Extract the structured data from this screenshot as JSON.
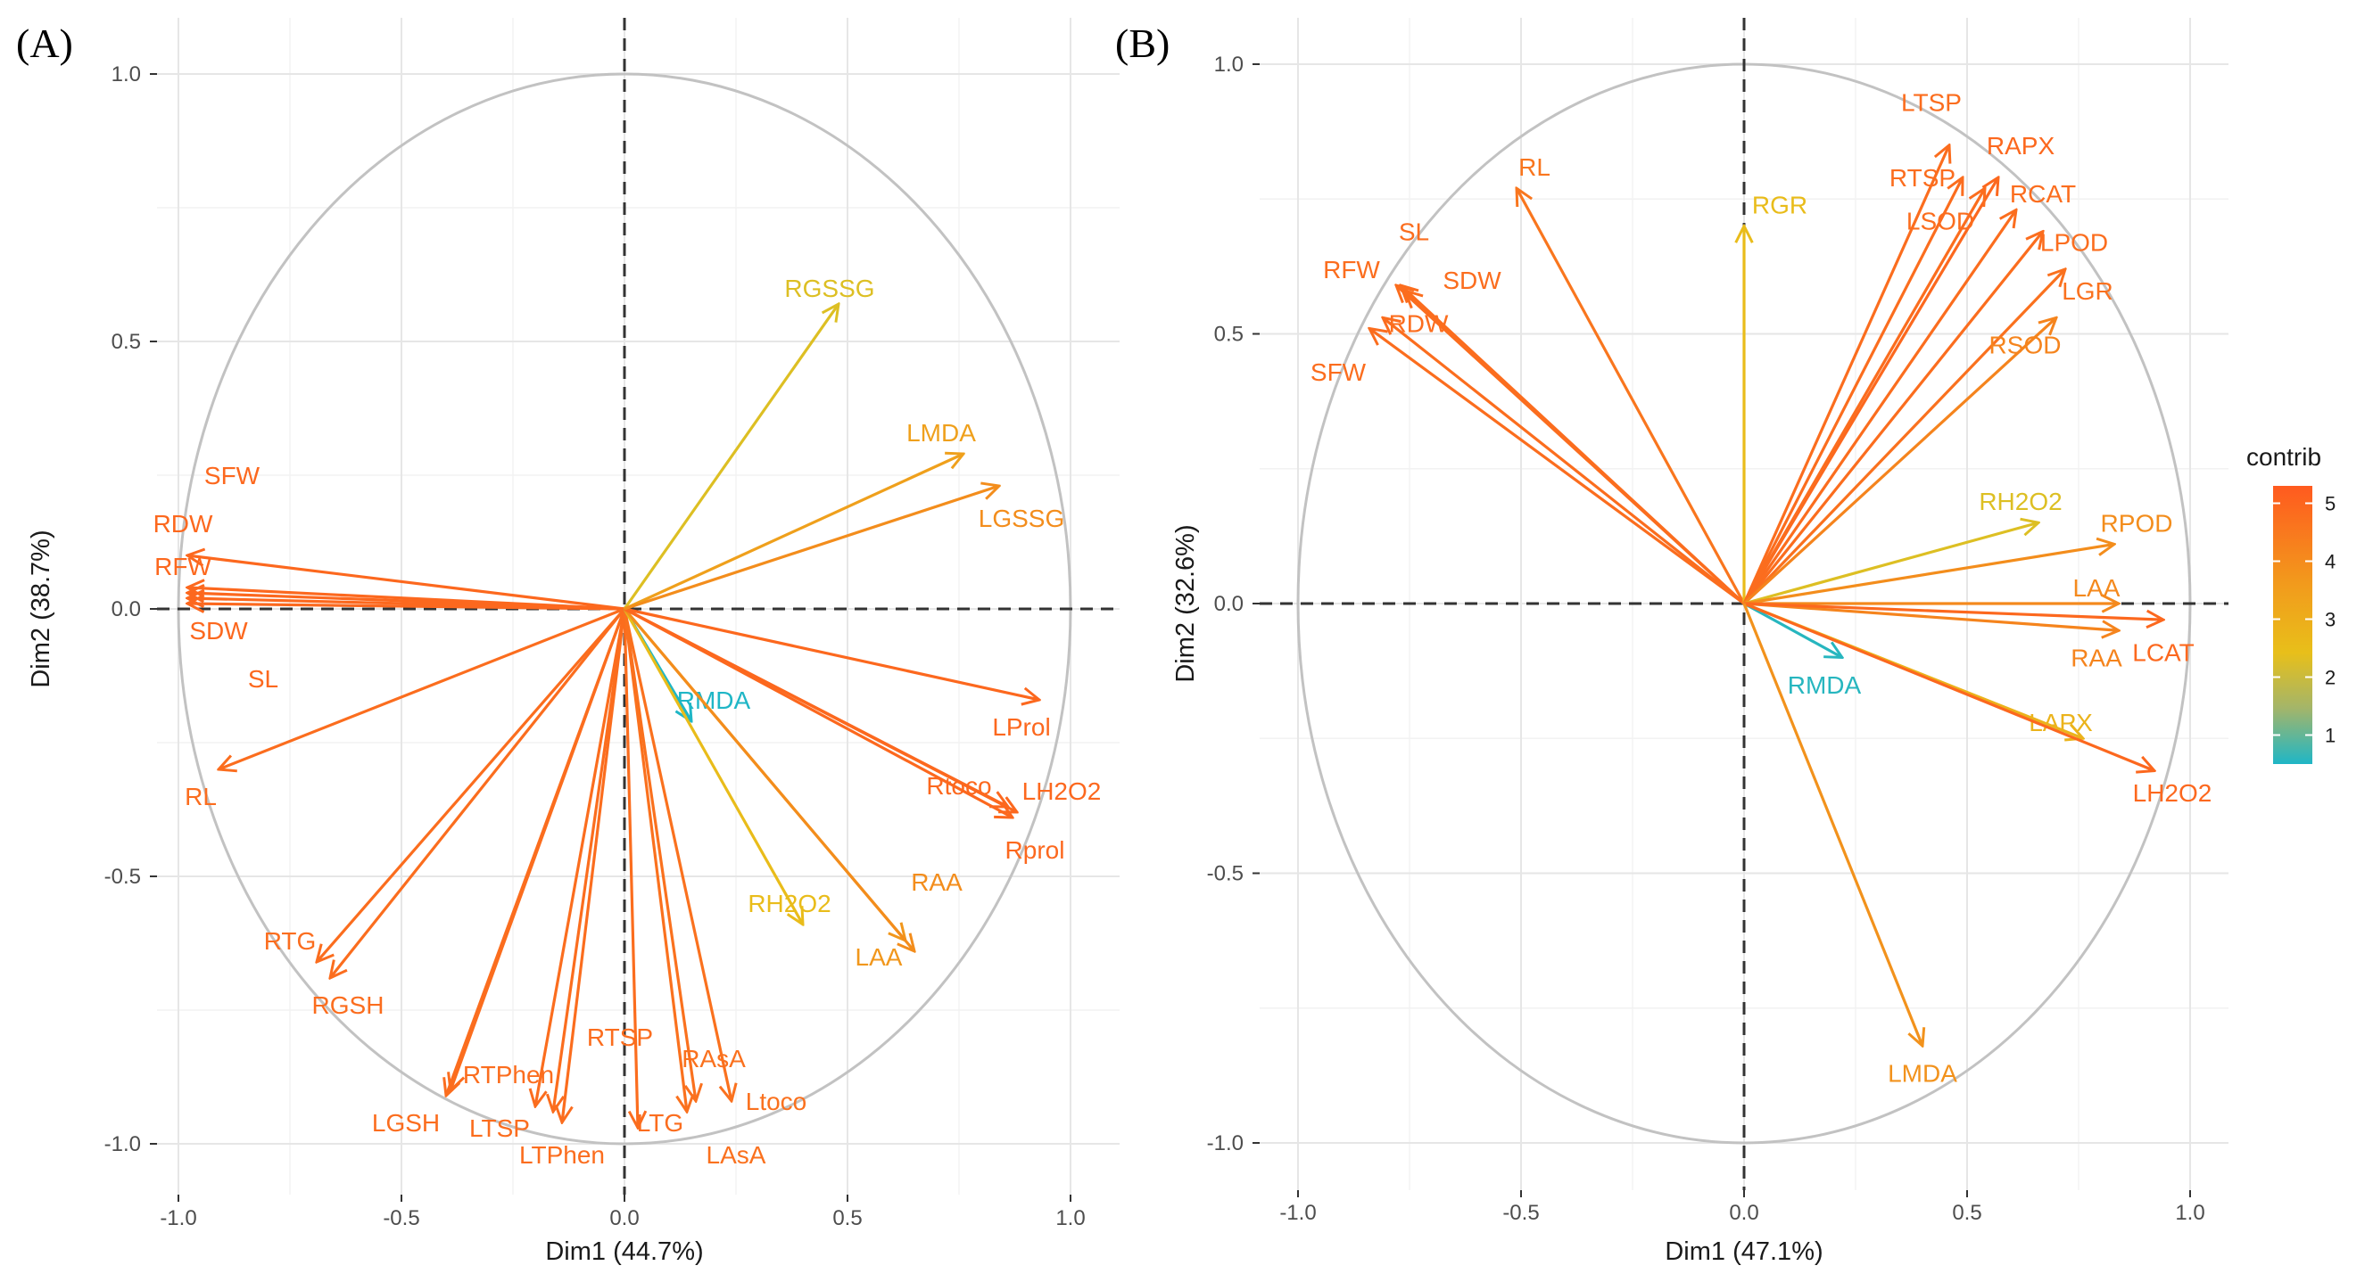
{
  "figure": {
    "color_scale": {
      "low": "#1fb6c6",
      "mid": "#e8bf1a",
      "high": "#ff5a1f"
    },
    "legend": {
      "title": "contrib",
      "ticks": [
        "5",
        "4",
        "3",
        "2",
        "1"
      ],
      "tick_values": [
        5,
        4,
        3,
        2,
        1
      ],
      "range": [
        0.5,
        5.3
      ]
    }
  },
  "chart_data": [
    {
      "type": "pca-variable-correlation-circle",
      "panel_label": "(A)",
      "xlabel": "Dim1 (44.7%)",
      "ylabel": "Dim2 (38.7%)",
      "xlim": [
        -1.0,
        1.0
      ],
      "ylim": [
        -1.0,
        1.0
      ],
      "x_ticks": [
        -1.0,
        -0.5,
        0.0,
        0.5,
        1.0
      ],
      "x_tick_labels": [
        "-1.0",
        "-0.5",
        "0.0",
        "0.5",
        "1.0"
      ],
      "y_ticks": [
        -1.0,
        -0.5,
        0.0,
        0.5,
        1.0
      ],
      "y_tick_labels": [
        "-1.0",
        "-0.5",
        "0.0",
        "0.5",
        "1.0"
      ],
      "variables": [
        {
          "name": "SFW",
          "x": -0.98,
          "y": 0.03,
          "contrib": 5.0,
          "label_x": -0.88,
          "label_y": 0.25
        },
        {
          "name": "RDW",
          "x": -0.98,
          "y": 0.1,
          "contrib": 5.0,
          "label_x": -0.99,
          "label_y": 0.16
        },
        {
          "name": "RFW",
          "x": -0.98,
          "y": 0.04,
          "contrib": 5.0,
          "label_x": -0.99,
          "label_y": 0.08
        },
        {
          "name": "SDW",
          "x": -0.98,
          "y": 0.01,
          "contrib": 5.0,
          "label_x": -0.91,
          "label_y": -0.04
        },
        {
          "name": "SL",
          "x": -0.98,
          "y": 0.02,
          "contrib": 5.0,
          "label_x": -0.81,
          "label_y": -0.13
        },
        {
          "name": "RL",
          "x": -0.91,
          "y": -0.3,
          "contrib": 4.9,
          "label_x": -0.95,
          "label_y": -0.35
        },
        {
          "name": "RTG",
          "x": -0.69,
          "y": -0.66,
          "contrib": 4.9,
          "label_x": -0.75,
          "label_y": -0.62
        },
        {
          "name": "RGSH",
          "x": -0.66,
          "y": -0.69,
          "contrib": 4.9,
          "label_x": -0.62,
          "label_y": -0.74
        },
        {
          "name": "RTPhen",
          "x": -0.39,
          "y": -0.9,
          "contrib": 4.9,
          "label_x": -0.26,
          "label_y": -0.87
        },
        {
          "name": "LGSH",
          "x": -0.4,
          "y": -0.91,
          "contrib": 4.9,
          "label_x": -0.49,
          "label_y": -0.96
        },
        {
          "name": "LTSP",
          "x": -0.2,
          "y": -0.93,
          "contrib": 4.9,
          "label_x": -0.28,
          "label_y": -0.97
        },
        {
          "name": "LTPhen",
          "x": -0.14,
          "y": -0.96,
          "contrib": 4.9,
          "label_x": -0.14,
          "label_y": -1.02
        },
        {
          "name": "RTSP",
          "x": -0.16,
          "y": -0.94,
          "contrib": 4.9,
          "label_x": -0.01,
          "label_y": -0.8
        },
        {
          "name": "LTG",
          "x": 0.03,
          "y": -0.97,
          "contrib": 4.9,
          "label_x": 0.08,
          "label_y": -0.96
        },
        {
          "name": "RAsA",
          "x": 0.16,
          "y": -0.92,
          "contrib": 4.8,
          "label_x": 0.2,
          "label_y": -0.84
        },
        {
          "name": "Ltoco",
          "x": 0.24,
          "y": -0.92,
          "contrib": 4.8,
          "label_x": 0.34,
          "label_y": -0.92
        },
        {
          "name": "LAsA",
          "x": 0.14,
          "y": -0.94,
          "contrib": 4.8,
          "label_x": 0.25,
          "label_y": -1.02
        },
        {
          "name": "RMDA",
          "x": 0.15,
          "y": -0.21,
          "contrib": 0.5,
          "label_x": 0.2,
          "label_y": -0.17
        },
        {
          "name": "RH2O2",
          "x": 0.4,
          "y": -0.59,
          "contrib": 3.2,
          "label_x": 0.37,
          "label_y": -0.55
        },
        {
          "name": "LAA",
          "x": 0.63,
          "y": -0.62,
          "contrib": 4.0,
          "label_x": 0.57,
          "label_y": -0.65
        },
        {
          "name": "RAA",
          "x": 0.65,
          "y": -0.64,
          "contrib": 4.2,
          "label_x": 0.7,
          "label_y": -0.51
        },
        {
          "name": "LProl",
          "x": 0.93,
          "y": -0.17,
          "contrib": 5.0,
          "label_x": 0.89,
          "label_y": -0.22
        },
        {
          "name": "Rtoco",
          "x": 0.86,
          "y": -0.37,
          "contrib": 5.0,
          "label_x": 0.75,
          "label_y": -0.33
        },
        {
          "name": "LH2O2",
          "x": 0.88,
          "y": -0.38,
          "contrib": 5.0,
          "label_x": 0.98,
          "label_y": -0.34
        },
        {
          "name": "Rprol",
          "x": 0.87,
          "y": -0.39,
          "contrib": 5.0,
          "label_x": 0.92,
          "label_y": -0.45
        },
        {
          "name": "RGSSG",
          "x": 0.48,
          "y": 0.57,
          "contrib": 3.0,
          "label_x": 0.46,
          "label_y": 0.6
        },
        {
          "name": "LMDA",
          "x": 0.76,
          "y": 0.29,
          "contrib": 3.8,
          "label_x": 0.71,
          "label_y": 0.33
        },
        {
          "name": "LGSSG",
          "x": 0.84,
          "y": 0.23,
          "contrib": 4.2,
          "label_x": 0.89,
          "label_y": 0.17
        }
      ]
    },
    {
      "type": "pca-variable-correlation-circle",
      "panel_label": "(B)",
      "xlabel": "Dim1 (47.1%)",
      "ylabel": "Dim2 (32.6%)",
      "xlim": [
        -1.0,
        1.0
      ],
      "ylim": [
        -1.0,
        1.0
      ],
      "x_ticks": [
        -1.0,
        -0.5,
        0.0,
        0.5,
        1.0
      ],
      "x_tick_labels": [
        "-1.0",
        "-0.5",
        "0.0",
        "0.5",
        "1.0"
      ],
      "y_ticks": [
        -1.0,
        -0.5,
        0.0,
        0.5,
        1.0
      ],
      "y_tick_labels": [
        "-1.0",
        "-0.5",
        "0.0",
        "0.5",
        "1.0"
      ],
      "variables": [
        {
          "name": "RL",
          "x": -0.51,
          "y": 0.77,
          "contrib": 4.7,
          "label_x": -0.47,
          "label_y": 0.81
        },
        {
          "name": "SL",
          "x": -0.77,
          "y": 0.59,
          "contrib": 4.9,
          "label_x": -0.74,
          "label_y": 0.69
        },
        {
          "name": "RFW",
          "x": -0.78,
          "y": 0.59,
          "contrib": 4.9,
          "label_x": -0.88,
          "label_y": 0.62
        },
        {
          "name": "SDW",
          "x": -0.76,
          "y": 0.58,
          "contrib": 4.9,
          "label_x": -0.61,
          "label_y": 0.6
        },
        {
          "name": "RDW",
          "x": -0.81,
          "y": 0.53,
          "contrib": 4.9,
          "label_x": -0.73,
          "label_y": 0.52
        },
        {
          "name": "SFW",
          "x": -0.84,
          "y": 0.51,
          "contrib": 4.9,
          "label_x": -0.91,
          "label_y": 0.43
        },
        {
          "name": "RGR",
          "x": 0.0,
          "y": 0.7,
          "contrib": 3.2,
          "label_x": 0.08,
          "label_y": 0.74
        },
        {
          "name": "LTSP",
          "x": 0.46,
          "y": 0.85,
          "contrib": 4.9,
          "label_x": 0.42,
          "label_y": 0.93
        },
        {
          "name": "RAPX",
          "x": 0.57,
          "y": 0.79,
          "contrib": 5.0,
          "label_x": 0.62,
          "label_y": 0.85
        },
        {
          "name": "RTSP",
          "x": 0.49,
          "y": 0.79,
          "contrib": 4.9,
          "label_x": 0.4,
          "label_y": 0.79
        },
        {
          "name": "RCAT",
          "x": 0.61,
          "y": 0.73,
          "contrib": 4.9,
          "label_x": 0.67,
          "label_y": 0.76
        },
        {
          "name": "LSOD",
          "x": 0.54,
          "y": 0.77,
          "contrib": 4.9,
          "label_x": 0.44,
          "label_y": 0.71
        },
        {
          "name": "LPOD",
          "x": 0.67,
          "y": 0.69,
          "contrib": 4.9,
          "label_x": 0.74,
          "label_y": 0.67
        },
        {
          "name": "LGR",
          "x": 0.72,
          "y": 0.62,
          "contrib": 4.8,
          "label_x": 0.77,
          "label_y": 0.58
        },
        {
          "name": "RSOD",
          "x": 0.7,
          "y": 0.53,
          "contrib": 4.4,
          "label_x": 0.63,
          "label_y": 0.48
        },
        {
          "name": "RH2O2",
          "x": 0.66,
          "y": 0.15,
          "contrib": 3.0,
          "label_x": 0.62,
          "label_y": 0.19
        },
        {
          "name": "RPOD",
          "x": 0.83,
          "y": 0.11,
          "contrib": 4.2,
          "label_x": 0.88,
          "label_y": 0.15
        },
        {
          "name": "LAA",
          "x": 0.84,
          "y": 0.0,
          "contrib": 4.3,
          "label_x": 0.79,
          "label_y": 0.03
        },
        {
          "name": "RAA",
          "x": 0.84,
          "y": -0.05,
          "contrib": 4.4,
          "label_x": 0.79,
          "label_y": -0.1
        },
        {
          "name": "LCAT",
          "x": 0.94,
          "y": -0.03,
          "contrib": 5.0,
          "label_x": 0.94,
          "label_y": -0.09
        },
        {
          "name": "RMDA",
          "x": 0.22,
          "y": -0.1,
          "contrib": 0.6,
          "label_x": 0.18,
          "label_y": -0.15
        },
        {
          "name": "LAPX",
          "x": 0.76,
          "y": -0.25,
          "contrib": 3.4,
          "label_x": 0.71,
          "label_y": -0.22
        },
        {
          "name": "LH2O2",
          "x": 0.92,
          "y": -0.31,
          "contrib": 5.0,
          "label_x": 0.96,
          "label_y": -0.35
        },
        {
          "name": "LMDA",
          "x": 0.4,
          "y": -0.82,
          "contrib": 4.1,
          "label_x": 0.4,
          "label_y": -0.87
        }
      ]
    }
  ]
}
